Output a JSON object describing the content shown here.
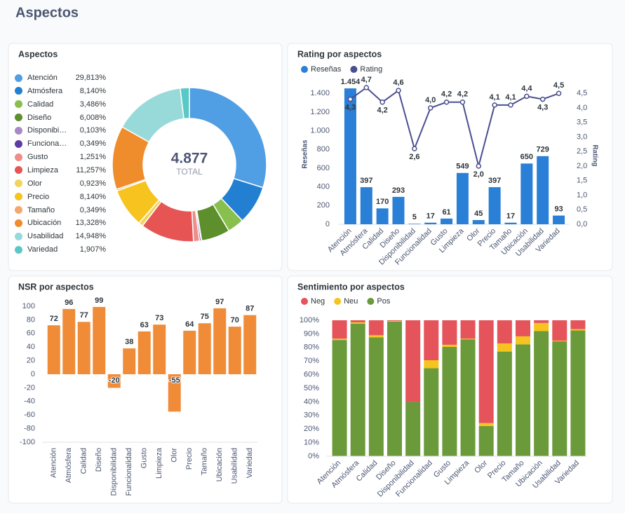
{
  "header": {
    "title": "Aspectos"
  },
  "chart_data": [
    {
      "type": "pie",
      "title": "Aspectos",
      "categories": [
        "Atención",
        "Atmósfera",
        "Calidad",
        "Diseño",
        "Disponibilidad",
        "Funcionalidad",
        "Gusto",
        "Limpieza",
        "Olor",
        "Precio",
        "Tamaño",
        "Ubicación",
        "Usabilidad",
        "Variedad"
      ],
      "values": [
        29.813,
        8.14,
        3.486,
        6.008,
        0.103,
        0.349,
        1.251,
        11.257,
        0.923,
        8.14,
        0.349,
        13.328,
        14.948,
        1.907
      ],
      "value_labels": [
        "29,813%",
        "8,140%",
        "3,486%",
        "6,008%",
        "0,103%",
        "0,349%",
        "1,251%",
        "11,257%",
        "0,923%",
        "8,140%",
        "0,349%",
        "13,328%",
        "14,948%",
        "1,907%"
      ],
      "colors": [
        "#509ee3",
        "#227fd2",
        "#88bf4d",
        "#5d8f2c",
        "#a989c5",
        "#5e3ba6",
        "#ef8c8c",
        "#e75454",
        "#f2d45c",
        "#f7c41f",
        "#f2a86f",
        "#ef8c2c",
        "#98d9d9",
        "#5bc8c8"
      ],
      "center_value": "4.877",
      "center_label": "TOTAL"
    },
    {
      "type": "combo",
      "title": "Rating por aspectos",
      "categories": [
        "Atención",
        "Atmósfera",
        "Calidad",
        "Diseño",
        "Disponibilidad",
        "Funcionalidad",
        "Gusto",
        "Limpieza",
        "Olor",
        "Precio",
        "Tamaño",
        "Ubicación",
        "Usabilidad",
        "Variedad"
      ],
      "series": [
        {
          "name": "Reseñas",
          "color": "#2a7fd6",
          "values": [
            1454,
            397,
            170,
            293,
            5,
            17,
            61,
            549,
            45,
            397,
            17,
            650,
            729,
            93
          ],
          "value_labels": [
            "1.454",
            "397",
            "170",
            "293",
            "5",
            "17",
            "61",
            "549",
            "45",
            "397",
            "17",
            "650",
            "729",
            "93"
          ]
        },
        {
          "name": "Rating",
          "color": "#4b4e8f",
          "type": "line",
          "axis": "y2",
          "values": [
            4.3,
            4.7,
            4.2,
            4.6,
            2.6,
            4.0,
            4.2,
            4.2,
            2.0,
            4.1,
            4.1,
            4.4,
            4.3,
            4.5
          ],
          "value_labels": [
            "4,3",
            "4,7",
            "4,2",
            "4,6",
            "2,6",
            "4,0",
            "4,2",
            "4,2",
            "2,0",
            "4,1",
            "4,1",
            "4,4",
            "4,3",
            "4,5"
          ]
        }
      ],
      "ylabel": "Reseñas",
      "y2label": "Rating",
      "ylim": [
        0,
        1500
      ],
      "yticks": [
        0,
        200,
        400,
        600,
        800,
        {
          "value": 1000,
          "label": "1.000"
        },
        {
          "value": 1200,
          "label": "1.200"
        },
        {
          "value": 1400,
          "label": "1.400"
        }
      ],
      "y2lim": [
        0,
        4.82
      ],
      "y2ticks": [
        {
          "value": 0,
          "label": "0,0"
        },
        {
          "value": 0.5,
          "label": "0,5"
        },
        {
          "value": 1,
          "label": "1,0"
        },
        {
          "value": 1.5,
          "label": "1,5"
        },
        {
          "value": 2,
          "label": "2,0"
        },
        {
          "value": 2.5,
          "label": "2,5"
        },
        {
          "value": 3,
          "label": "3,0"
        },
        {
          "value": 3.5,
          "label": "3,5"
        },
        {
          "value": 4,
          "label": "4,0"
        },
        {
          "value": 4.5,
          "label": "4,5"
        }
      ]
    },
    {
      "type": "bar",
      "title": "NSR por aspectos",
      "categories": [
        "Atención",
        "Atmósfera",
        "Calidad",
        "Diseño",
        "Disponibilidad",
        "Funcionalidad",
        "Gusto",
        "Limpieza",
        "Olor",
        "Precio",
        "Tamaño",
        "Ubicación",
        "Usabilidad",
        "Variedad"
      ],
      "values": [
        72,
        96,
        77,
        99,
        -20,
        38,
        63,
        73,
        -55,
        64,
        75,
        97,
        70,
        87
      ],
      "color": "#f08c38",
      "ylim": [
        -100,
        100
      ],
      "yticks": [
        -100,
        -80,
        -60,
        -40,
        -20,
        0,
        20,
        40,
        60,
        80,
        100
      ]
    },
    {
      "type": "stacked_bar",
      "title": "Sentimiento por aspectos",
      "categories": [
        "Atención",
        "Atmósfera",
        "Calidad",
        "Diseño",
        "Disponibilidad",
        "Funcionalidad",
        "Gusto",
        "Limpieza",
        "Olor",
        "Precio",
        "Tamaño",
        "Ubicación",
        "Usabilidad",
        "Variedad"
      ],
      "series": [
        {
          "name": "Neg",
          "color": "#e5535b",
          "values": [
            13.5,
            1.5,
            11,
            0.5,
            60,
            29.4,
            18,
            13.5,
            75.6,
            17,
            11.8,
            2,
            15,
            6.5
          ]
        },
        {
          "name": "Neu",
          "color": "#f5c41f",
          "values": [
            1,
            1,
            1.5,
            0.5,
            0,
            5.9,
            1.6,
            0.5,
            2.2,
            6,
            5.9,
            6,
            0.5,
            1
          ]
        },
        {
          "name": "Pos",
          "color": "#6a9a3a",
          "values": [
            85.5,
            97.5,
            87.5,
            99,
            40,
            64.7,
            80.4,
            86,
            22.2,
            77,
            82.3,
            92,
            84.5,
            92.5
          ]
        }
      ],
      "ylim": [
        0,
        100
      ],
      "yticks": [
        {
          "value": 0,
          "label": "0%"
        },
        {
          "value": 10,
          "label": "10%"
        },
        {
          "value": 20,
          "label": "20%"
        },
        {
          "value": 30,
          "label": "30%"
        },
        {
          "value": 40,
          "label": "40%"
        },
        {
          "value": 50,
          "label": "50%"
        },
        {
          "value": 60,
          "label": "60%"
        },
        {
          "value": 70,
          "label": "70%"
        },
        {
          "value": 80,
          "label": "80%"
        },
        {
          "value": 90,
          "label": "90%"
        },
        {
          "value": 100,
          "label": "100%"
        }
      ]
    }
  ]
}
